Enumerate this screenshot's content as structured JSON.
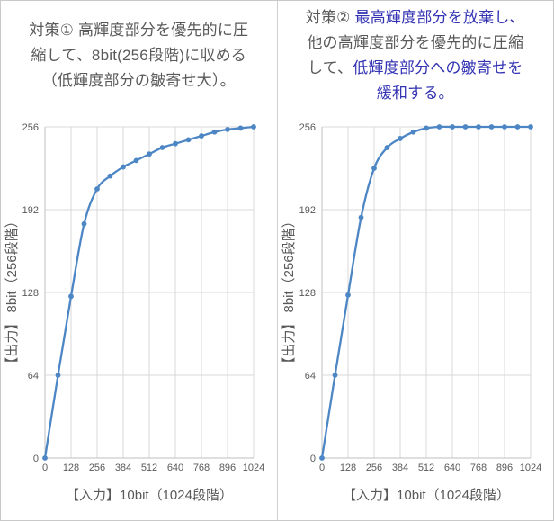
{
  "colors": {
    "title_gray": "#595959",
    "title_blue": "#3333b3",
    "line": "#4d86c4",
    "grid": "#d9d9d9",
    "axis": "#bfbfbf",
    "tick_label": "#595959",
    "axis_title": "#595959"
  },
  "panels": [
    {
      "name": "countermeasure-1",
      "title_lines": [
        [
          {
            "text": "対策① 高輝度部分を優先的に圧",
            "color": "gray"
          }
        ],
        [
          {
            "text": "縮して、8bit(256段階)に収める",
            "color": "gray"
          }
        ],
        [
          {
            "text": "（低輝度部分の皺寄せ大）。",
            "color": "gray"
          }
        ]
      ]
    },
    {
      "name": "countermeasure-2",
      "title_lines": [
        [
          {
            "text": "対策② ",
            "color": "gray"
          },
          {
            "text": "最高輝度部分を放棄し、",
            "color": "blue"
          }
        ],
        [
          {
            "text": "他の高輝度部分を優先的に圧縮",
            "color": "gray"
          }
        ],
        [
          {
            "text": "して、",
            "color": "gray"
          },
          {
            "text": "低輝度部分への皺寄せを",
            "color": "blue"
          }
        ],
        [
          {
            "text": "緩和する。",
            "color": "blue"
          }
        ]
      ]
    }
  ],
  "chart_data": [
    {
      "type": "line",
      "title": "",
      "x": [
        0,
        64,
        128,
        192,
        256,
        320,
        384,
        448,
        512,
        576,
        640,
        704,
        768,
        832,
        896,
        960,
        1024
      ],
      "values": [
        0,
        64,
        125,
        181,
        208,
        218,
        225,
        230,
        235,
        240,
        243,
        246,
        249,
        252,
        254,
        255,
        256
      ],
      "xlabel": "【入力】10bit（1024段階）",
      "ylabel": "【出力】 8bit（256段階）",
      "xticks": [
        0,
        128,
        256,
        384,
        512,
        640,
        768,
        896,
        1024
      ],
      "yticks": [
        0,
        64,
        128,
        192,
        256
      ],
      "xlim": [
        0,
        1024
      ],
      "ylim": [
        0,
        256
      ],
      "grid": true,
      "legend": "none",
      "marker": "circle"
    },
    {
      "type": "line",
      "title": "",
      "x": [
        0,
        64,
        128,
        192,
        256,
        320,
        384,
        448,
        512,
        576,
        640,
        704,
        768,
        832,
        896,
        960,
        1024
      ],
      "values": [
        0,
        64,
        126,
        186,
        224,
        240,
        247,
        252,
        255,
        256,
        256,
        256,
        256,
        256,
        256,
        256,
        256
      ],
      "xlabel": "【入力】10bit（1024段階）",
      "ylabel": "【出力】 8bit（256段階）",
      "xticks": [
        0,
        128,
        256,
        384,
        512,
        640,
        768,
        896,
        1024
      ],
      "yticks": [
        0,
        64,
        128,
        192,
        256
      ],
      "xlim": [
        0,
        1024
      ],
      "ylim": [
        0,
        256
      ],
      "grid": true,
      "legend": "none",
      "marker": "circle"
    }
  ]
}
